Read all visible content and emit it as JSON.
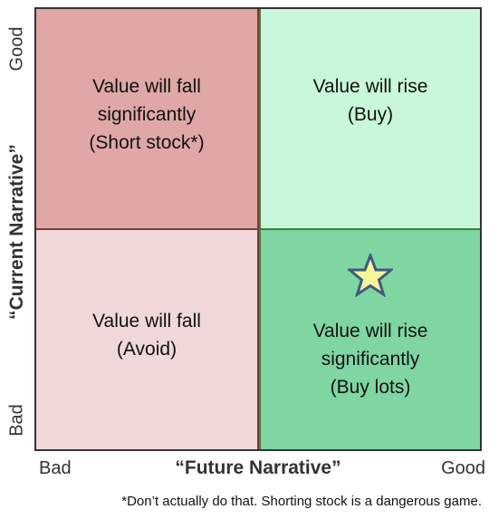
{
  "quadrants": {
    "top_left": "Value will fall\nsignificantly\n(Short stock*)",
    "top_right": "Value will rise\n(Buy)",
    "bottom_left": "Value will fall\n(Avoid)",
    "bottom_right": "Value will rise\nsignificantly\n(Buy lots)"
  },
  "y_axis": {
    "label": "“Current Narrative”",
    "high": "Good",
    "low": "Bad"
  },
  "x_axis": {
    "label": "“Future Narrative”",
    "low": "Bad",
    "high": "Good"
  },
  "footnote": "*Don’t actually do that. Shorting stock is a dangerous game.",
  "colors": {
    "top_left": "#dfa7a6",
    "top_right": "#c9f7d9",
    "bottom_left": "#f1d8d8",
    "bottom_right": "#7fd6a3",
    "star_fill": "#f7f59a",
    "star_stroke": "#3f5a80"
  },
  "icons": {
    "highlight": "star-icon"
  }
}
